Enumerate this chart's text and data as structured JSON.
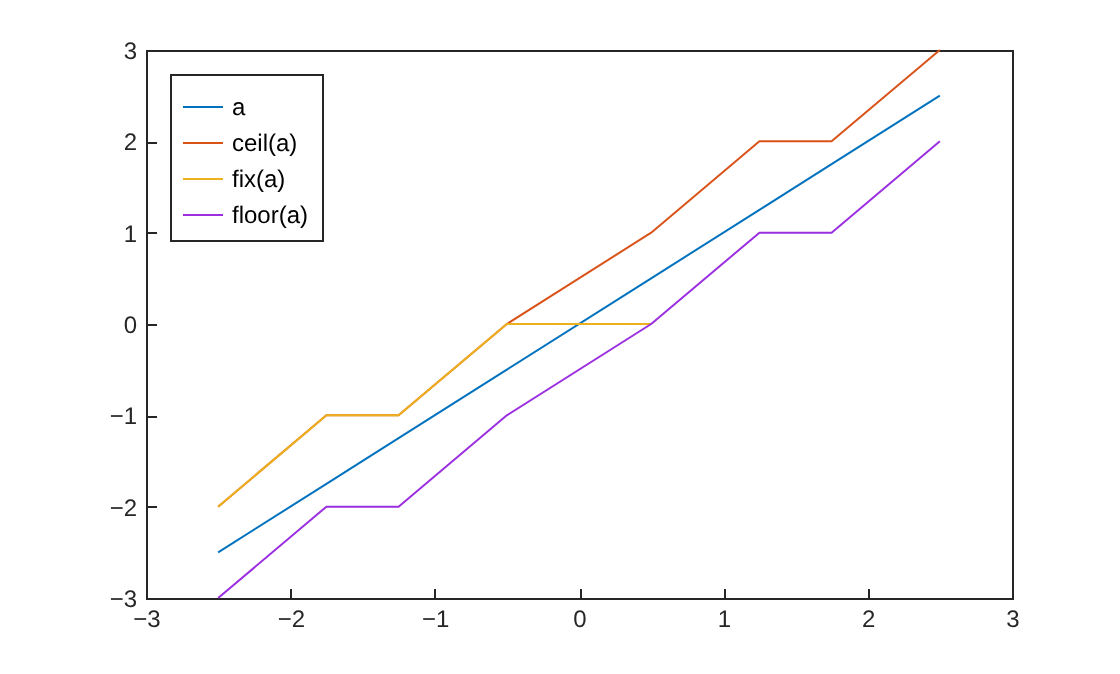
{
  "chart_data": {
    "type": "line",
    "x": [
      -2.5,
      -1.75,
      -1.25,
      -0.5,
      0.5,
      1.25,
      1.75,
      2.5
    ],
    "series": [
      {
        "name": "a",
        "color": "#0072bd",
        "values": [
          -2.5,
          -1.75,
          -1.25,
          -0.5,
          0.5,
          1.25,
          1.75,
          2.5
        ]
      },
      {
        "name": "ceil(a)",
        "color": "#d95319",
        "values": [
          -2,
          -1,
          -1,
          0,
          1,
          2,
          2,
          3
        ]
      },
      {
        "name": "fix(a)",
        "color": "#edb120",
        "values": [
          -2,
          -1,
          -1,
          0,
          0,
          null,
          null,
          null
        ]
      },
      {
        "name": "floor(a)",
        "color": "#9b2fe0",
        "values": [
          -3,
          -2,
          -2,
          -1,
          0,
          1,
          1,
          2
        ]
      }
    ],
    "xlim": [
      -3,
      3
    ],
    "xticks": [
      -3,
      -2,
      -1,
      0,
      1,
      2,
      3
    ],
    "ylim": [
      -3,
      3
    ],
    "yticks": [
      -3,
      -2,
      -1,
      0,
      1,
      2,
      3
    ],
    "grid": false,
    "legend": "top left",
    "marker": "none",
    "line_style": "solid"
  }
}
